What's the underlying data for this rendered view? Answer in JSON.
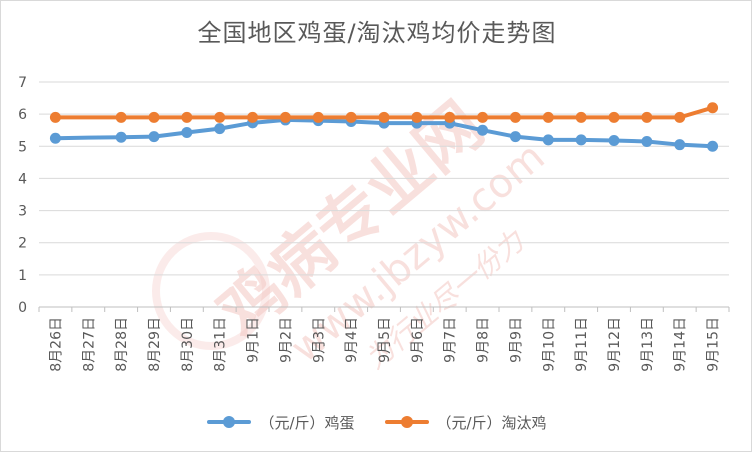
{
  "watermark": {
    "text_cn": "鸡病专业网",
    "text_url": "www.jbzyw.com",
    "text_sub": "为行业尽一份力",
    "color": "#f4c7c3"
  },
  "chart_data": {
    "type": "line",
    "title": "全国地区鸡蛋/淘汰鸡均价走势图",
    "xlabel": "",
    "ylabel": "",
    "ylim": [
      0,
      7
    ],
    "yticks": [
      "0",
      "1",
      "2",
      "3",
      "4",
      "5",
      "6",
      "7"
    ],
    "grid": true,
    "legend_position": "bottom",
    "categories": [
      "8月26日",
      "8月27日",
      "8月28日",
      "8月29日",
      "8月30日",
      "8月31日",
      "9月1日",
      "9月2日",
      "9月3日",
      "9月4日",
      "9月5日",
      "9月6日",
      "9月7日",
      "9月8日",
      "9月9日",
      "9月10日",
      "9月11日",
      "9月12日",
      "9月13日",
      "9月14日",
      "9月15日"
    ],
    "series": [
      {
        "name": "（元/斤）鸡蛋",
        "color": "#5b9bd5",
        "values": [
          5.25,
          5.27,
          5.28,
          5.3,
          5.43,
          5.55,
          5.73,
          5.82,
          5.8,
          5.77,
          5.72,
          5.72,
          5.72,
          5.5,
          5.3,
          5.2,
          5.2,
          5.18,
          5.15,
          5.05,
          5.0
        ],
        "skip_markers": [
          1
        ]
      },
      {
        "name": "（元/斤）淘汰鸡",
        "color": "#ed7d31",
        "values": [
          5.9,
          5.9,
          5.9,
          5.9,
          5.9,
          5.9,
          5.9,
          5.9,
          5.9,
          5.9,
          5.9,
          5.9,
          5.9,
          5.9,
          5.9,
          5.9,
          5.9,
          5.9,
          5.9,
          5.9,
          6.2
        ],
        "skip_markers": [
          1
        ]
      }
    ]
  }
}
